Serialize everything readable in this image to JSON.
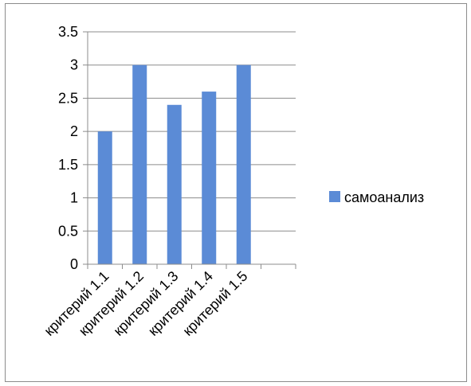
{
  "chart_data": {
    "type": "bar",
    "categories": [
      "критерий 1.1",
      "критерий 1.2",
      "критерий 1.3",
      "критерий 1.4",
      "критерий 1.5",
      ""
    ],
    "series": [
      {
        "name": "самоанализ",
        "values": [
          2,
          3,
          2.4,
          2.6,
          3,
          null
        ],
        "color": "#5b8bd6"
      }
    ],
    "y_ticks": [
      "0",
      "0.5",
      "1",
      "1.5",
      "2",
      "2.5",
      "3",
      "3.5"
    ],
    "ylim": [
      0,
      3.5
    ],
    "grid": true,
    "legend_position": "right",
    "title": "",
    "xlabel": "",
    "ylabel": ""
  }
}
